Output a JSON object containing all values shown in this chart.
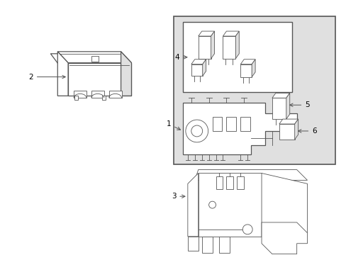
{
  "background_color": "#ffffff",
  "line_color": "#555555",
  "label_color": "#000000",
  "gray_fill": "#e0e0e0",
  "white_fill": "#ffffff",
  "lw_main": 0.9,
  "lw_thin": 0.6,
  "figsize": [
    4.89,
    3.6
  ],
  "dpi": 100
}
